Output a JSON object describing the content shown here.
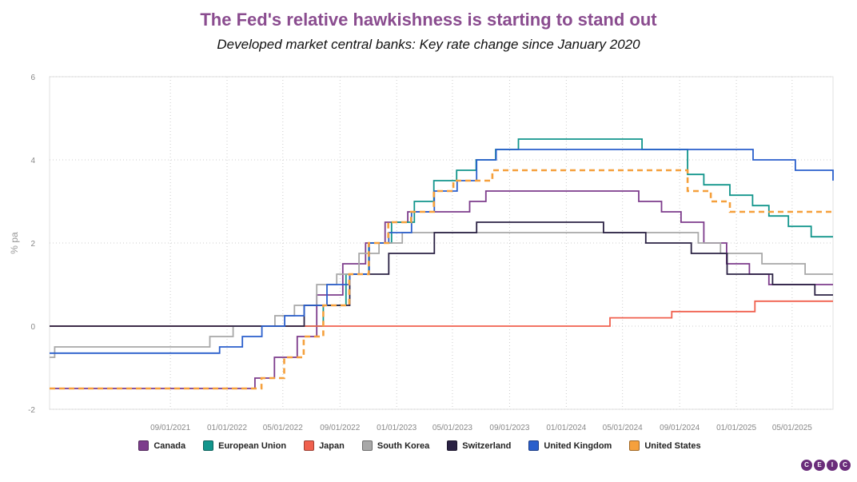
{
  "title": "The Fed's relative hawkishness is starting to stand out",
  "subtitle": "Developed market central banks: Key rate change since January 2020",
  "logo_letters": [
    "C",
    "E",
    "I",
    "C"
  ],
  "chart_data": {
    "type": "line",
    "ylabel": "% pa",
    "xlabel": "",
    "ylim": [
      -2,
      6
    ],
    "yticks": [
      -2,
      0,
      2,
      4,
      6
    ],
    "xlim": [
      "2020-12-15",
      "2025-07-28"
    ],
    "xticks": [
      "09/01/2021",
      "01/01/2022",
      "05/01/2022",
      "09/01/2022",
      "01/01/2023",
      "05/01/2023",
      "09/01/2023",
      "01/01/2024",
      "05/01/2024",
      "09/01/2024",
      "01/01/2025",
      "05/01/2025"
    ],
    "grid": true,
    "legend_position": "bottom",
    "series": [
      {
        "name": "Canada",
        "color": "#7d3c8c",
        "dash": false,
        "points": [
          [
            "2020-12-15",
            -1.5
          ],
          [
            "2022-03-02",
            -1.25
          ],
          [
            "2022-04-13",
            -0.75
          ],
          [
            "2022-06-01",
            -0.25
          ],
          [
            "2022-07-13",
            0.75
          ],
          [
            "2022-09-07",
            1.5
          ],
          [
            "2022-10-26",
            2.0
          ],
          [
            "2022-12-07",
            2.5
          ],
          [
            "2023-01-25",
            2.75
          ],
          [
            "2023-06-07",
            3.0
          ],
          [
            "2023-07-12",
            3.25
          ],
          [
            "2024-06-05",
            3.0
          ],
          [
            "2024-07-24",
            2.75
          ],
          [
            "2024-09-04",
            2.5
          ],
          [
            "2024-10-23",
            2.0
          ],
          [
            "2024-12-11",
            1.5
          ],
          [
            "2025-01-29",
            1.25
          ],
          [
            "2025-03-12",
            1.0
          ],
          [
            "2025-07-28",
            1.0
          ]
        ]
      },
      {
        "name": "European Union",
        "color": "#12958c",
        "dash": false,
        "points": [
          [
            "2020-12-15",
            0.0
          ],
          [
            "2022-07-27",
            0.5
          ],
          [
            "2022-09-14",
            1.25
          ],
          [
            "2022-11-02",
            2.0
          ],
          [
            "2022-12-21",
            2.5
          ],
          [
            "2023-02-08",
            3.0
          ],
          [
            "2023-03-22",
            3.5
          ],
          [
            "2023-05-10",
            3.75
          ],
          [
            "2023-06-21",
            4.0
          ],
          [
            "2023-08-02",
            4.25
          ],
          [
            "2023-09-20",
            4.5
          ],
          [
            "2024-06-12",
            4.25
          ],
          [
            "2024-09-18",
            3.65
          ],
          [
            "2024-10-23",
            3.4
          ],
          [
            "2024-12-18",
            3.15
          ],
          [
            "2025-02-05",
            2.9
          ],
          [
            "2025-03-12",
            2.65
          ],
          [
            "2025-04-23",
            2.4
          ],
          [
            "2025-06-11",
            2.15
          ],
          [
            "2025-07-28",
            2.15
          ]
        ]
      },
      {
        "name": "Japan",
        "color": "#f0604e",
        "dash": false,
        "points": [
          [
            "2020-12-15",
            0.0
          ],
          [
            "2024-03-19",
            0.0
          ],
          [
            "2024-04-04",
            0.2
          ],
          [
            "2024-07-31",
            0.2
          ],
          [
            "2024-08-15",
            0.35
          ],
          [
            "2025-01-24",
            0.35
          ],
          [
            "2025-02-10",
            0.6
          ],
          [
            "2025-07-28",
            0.6
          ]
        ]
      },
      {
        "name": "South Korea",
        "color": "#a8a8a8",
        "dash": false,
        "points": [
          [
            "2020-12-15",
            -0.75
          ],
          [
            "2020-12-26",
            -0.5
          ],
          [
            "2021-11-25",
            -0.25
          ],
          [
            "2022-01-14",
            0.0
          ],
          [
            "2022-04-14",
            0.25
          ],
          [
            "2022-05-26",
            0.5
          ],
          [
            "2022-07-13",
            1.0
          ],
          [
            "2022-08-25",
            1.25
          ],
          [
            "2022-10-12",
            1.75
          ],
          [
            "2022-11-24",
            2.0
          ],
          [
            "2023-01-13",
            2.25
          ],
          [
            "2024-10-11",
            2.0
          ],
          [
            "2024-11-28",
            1.75
          ],
          [
            "2025-02-25",
            1.5
          ],
          [
            "2025-05-29",
            1.25
          ],
          [
            "2025-07-28",
            1.25
          ]
        ]
      },
      {
        "name": "Switzerland",
        "color": "#2b2244",
        "dash": false,
        "points": [
          [
            "2020-12-15",
            0.0
          ],
          [
            "2022-06-16",
            0.5
          ],
          [
            "2022-09-22",
            1.25
          ],
          [
            "2022-12-15",
            1.75
          ],
          [
            "2023-03-23",
            2.25
          ],
          [
            "2023-06-22",
            2.5
          ],
          [
            "2024-03-21",
            2.25
          ],
          [
            "2024-06-20",
            2.0
          ],
          [
            "2024-09-26",
            1.75
          ],
          [
            "2024-12-12",
            1.25
          ],
          [
            "2025-03-20",
            1.0
          ],
          [
            "2025-06-19",
            0.75
          ],
          [
            "2025-07-28",
            0.75
          ]
        ]
      },
      {
        "name": "United Kingdom",
        "color": "#2a5fcc",
        "dash": false,
        "points": [
          [
            "2020-12-15",
            -0.65
          ],
          [
            "2021-12-16",
            -0.5
          ],
          [
            "2022-02-03",
            -0.25
          ],
          [
            "2022-03-17",
            0.0
          ],
          [
            "2022-05-05",
            0.25
          ],
          [
            "2022-06-16",
            0.5
          ],
          [
            "2022-08-04",
            1.0
          ],
          [
            "2022-09-22",
            1.25
          ],
          [
            "2022-11-03",
            2.0
          ],
          [
            "2022-12-15",
            2.25
          ],
          [
            "2023-02-02",
            2.75
          ],
          [
            "2023-03-23",
            3.25
          ],
          [
            "2023-05-11",
            3.5
          ],
          [
            "2023-06-22",
            4.0
          ],
          [
            "2023-08-03",
            4.25
          ],
          [
            "2024-08-01",
            4.25
          ],
          [
            "2024-11-07",
            4.25
          ],
          [
            "2025-02-06",
            4.0
          ],
          [
            "2025-05-08",
            3.75
          ],
          [
            "2025-07-28",
            3.5
          ]
        ]
      },
      {
        "name": "United States",
        "color": "#f5a03c",
        "dash": true,
        "points": [
          [
            "2020-12-15",
            -1.5
          ],
          [
            "2022-03-16",
            -1.25
          ],
          [
            "2022-05-04",
            -0.75
          ],
          [
            "2022-06-15",
            -0.25
          ],
          [
            "2022-07-27",
            0.5
          ],
          [
            "2022-09-21",
            1.25
          ],
          [
            "2022-11-02",
            2.0
          ],
          [
            "2022-12-14",
            2.5
          ],
          [
            "2023-02-01",
            2.75
          ],
          [
            "2023-03-22",
            3.25
          ],
          [
            "2023-05-03",
            3.5
          ],
          [
            "2023-07-26",
            3.75
          ],
          [
            "2024-09-18",
            3.25
          ],
          [
            "2024-11-07",
            3.0
          ],
          [
            "2024-12-18",
            2.75
          ],
          [
            "2025-07-28",
            2.75
          ]
        ]
      }
    ]
  }
}
